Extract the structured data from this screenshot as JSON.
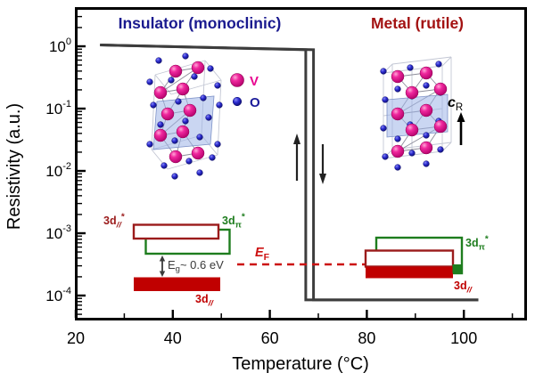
{
  "titles": {
    "insulator": "Insulator (monoclinic)",
    "metal": "Metal (rutile)"
  },
  "axes": {
    "x": {
      "label": "Temperature (°C)",
      "ticks": [
        20,
        40,
        60,
        80,
        100
      ],
      "minor_ticks": [
        30,
        50,
        70,
        90,
        110
      ]
    },
    "y": {
      "label": "Resistivity (a.u.)",
      "scale": "log",
      "ticks": [
        {
          "base": "10",
          "exp": "0"
        },
        {
          "base": "10",
          "exp": "-1"
        },
        {
          "base": "10",
          "exp": "-2"
        },
        {
          "base": "10",
          "exp": "-3"
        },
        {
          "base": "10",
          "exp": "-4"
        }
      ]
    }
  },
  "legend": {
    "items": [
      {
        "label": "V",
        "color": "#e8038f"
      },
      {
        "label": "O",
        "color": "#1a1a99"
      }
    ]
  },
  "annotations": {
    "c_axis": {
      "main": "c",
      "sub": "R"
    },
    "ef": {
      "main": "E",
      "sub": "F"
    },
    "eg": {
      "main": "E",
      "sub": "g",
      "rest": "~ 0.6 eV"
    },
    "bands_insulator": {
      "d_star": {
        "main": "3d",
        "sub": "//",
        "sup": "*"
      },
      "pi_star": {
        "main": "3d",
        "sub": "π",
        "sup": "*"
      },
      "d": {
        "main": "3d",
        "sub": "//"
      }
    },
    "bands_metal": {
      "pi_star": {
        "main": "3d",
        "sub": "π",
        "sup": "*"
      },
      "d": {
        "main": "3d",
        "sub": "//"
      }
    }
  },
  "colors": {
    "curve": "#3d3d3d",
    "insulator_title": "#1a1a8f",
    "metal_title": "#a31212",
    "band_red_outline": "#9b1b1b",
    "band_red_fill": "#c00000",
    "band_green": "#1e7d1e",
    "fermi_red": "#cc1111",
    "v_atom": "#e8038f",
    "o_atom": "#1a1a99"
  },
  "chart_data": {
    "type": "line",
    "title": "",
    "xlabel": "Temperature (°C)",
    "ylabel": "Resistivity (a.u.)",
    "x_range": [
      18.5,
      113
    ],
    "y_scale": "log",
    "y_range": [
      4.5e-05,
      4.3
    ],
    "grid": false,
    "legend_position": "none",
    "series": [
      {
        "name": "heating",
        "x": [
          25,
          69,
          69,
          103
        ],
        "y": [
          1.05,
          0.88,
          8.5e-05,
          8.5e-05
        ]
      },
      {
        "name": "cooling",
        "x": [
          103,
          67.4,
          67.4,
          25
        ],
        "y": [
          8.5e-05,
          8.5e-05,
          0.88,
          1.05
        ]
      }
    ],
    "annotations": [
      "Insulator (monoclinic)",
      "Metal (rutile)",
      "Eg ~ 0.6 eV",
      "EF",
      "cR",
      "V",
      "O",
      "3d//*",
      "3dπ*",
      "3d//"
    ]
  }
}
